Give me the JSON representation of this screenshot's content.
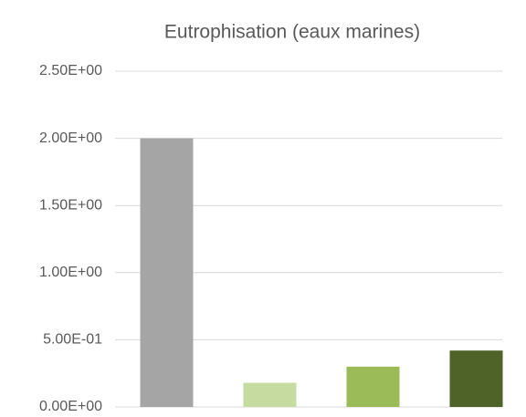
{
  "chart_data": {
    "type": "bar",
    "title": "Eutrophisation (eaux marines)",
    "categories": [
      null,
      null,
      null,
      null
    ],
    "values": [
      2.0,
      0.18,
      0.3,
      0.42
    ],
    "colors": [
      "#a5a5a5",
      "#c5dba0",
      "#9bbb59",
      "#4f6228"
    ],
    "ylim": [
      0,
      2.5
    ],
    "yticks": [
      {
        "value": 0,
        "label": "0.00E+00"
      },
      {
        "value": 0.5,
        "label": "5.00E-01"
      },
      {
        "value": 1.0,
        "label": "1.00E+00"
      },
      {
        "value": 1.5,
        "label": "1.50E+00"
      },
      {
        "value": 2.0,
        "label": "2.00E+00"
      },
      {
        "value": 2.5,
        "label": "2.50E+00"
      }
    ],
    "grid": true
  }
}
